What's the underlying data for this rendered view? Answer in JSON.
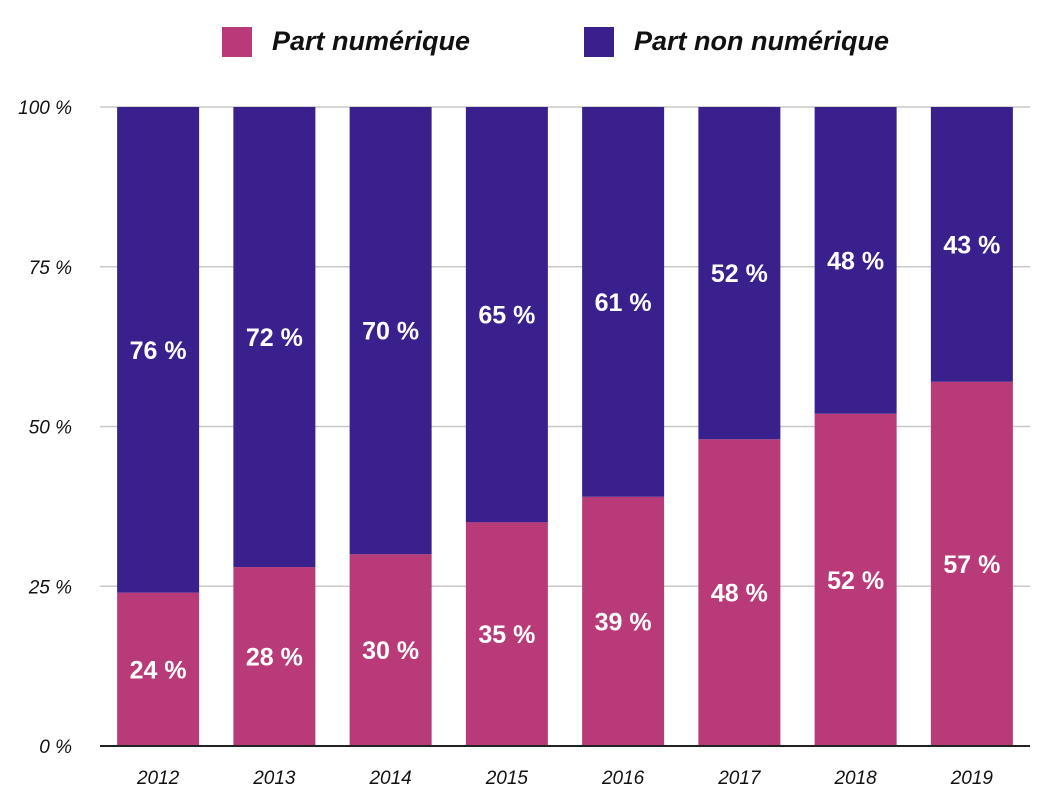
{
  "chart_data": {
    "type": "bar",
    "stacked": true,
    "categories": [
      "2012",
      "2013",
      "2014",
      "2015",
      "2016",
      "2017",
      "2018",
      "2019"
    ],
    "series": [
      {
        "name": "Part numérique",
        "color": "#B93A78",
        "values": [
          24,
          28,
          30,
          35,
          39,
          48,
          52,
          57
        ],
        "labels": [
          "24 %",
          "28 %",
          "30 %",
          "35 %",
          "39 %",
          "48 %",
          "52 %",
          "57 %"
        ]
      },
      {
        "name": "Part non numérique",
        "color": "#3A208C",
        "values": [
          76,
          72,
          70,
          65,
          61,
          52,
          48,
          43
        ],
        "labels": [
          "76 %",
          "72 %",
          "70 %",
          "65 %",
          "61 %",
          "52 %",
          "48 %",
          "43 %"
        ]
      }
    ],
    "yticks": [
      {
        "value": 0,
        "label": "0 %"
      },
      {
        "value": 25,
        "label": "25 %"
      },
      {
        "value": 50,
        "label": "50 %"
      },
      {
        "value": 75,
        "label": "75 %"
      },
      {
        "value": 100,
        "label": "100 %"
      }
    ],
    "ylim": [
      0,
      100
    ],
    "grid": true,
    "legend_position": "top-center"
  }
}
